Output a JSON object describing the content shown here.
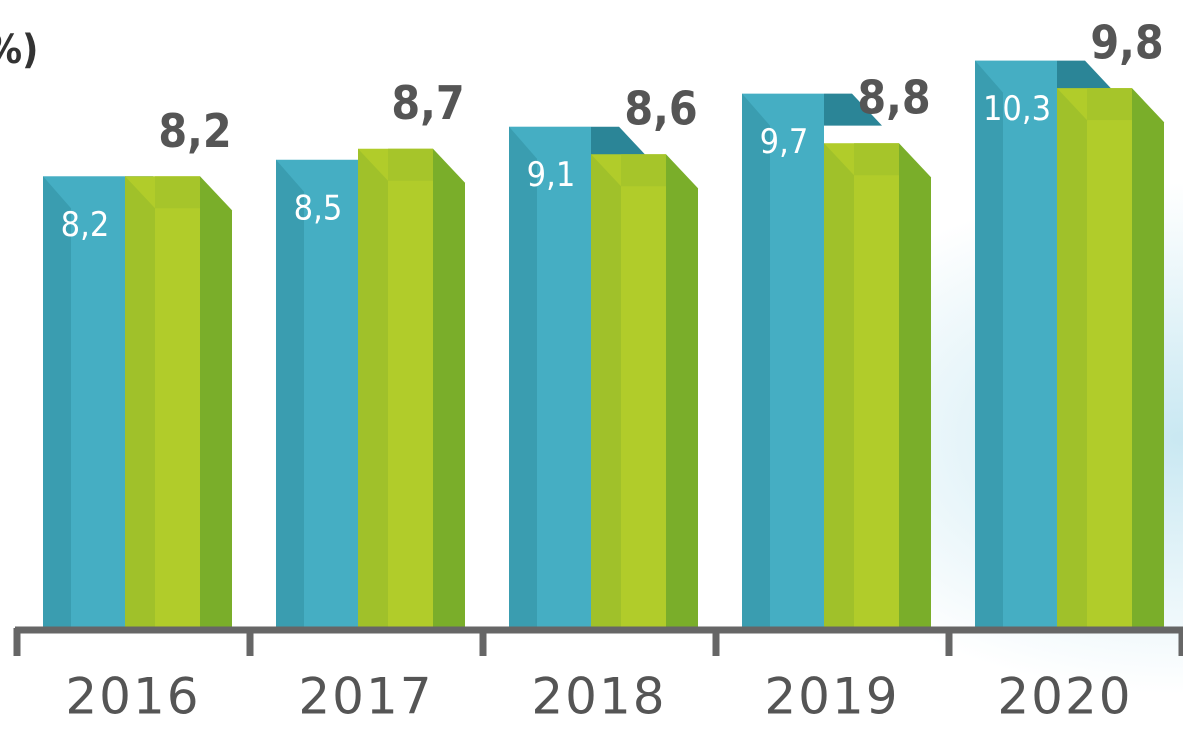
{
  "chart_data": {
    "type": "bar3d",
    "title": "%)",
    "categories": [
      "2016",
      "2017",
      "2018",
      "2019",
      "2020"
    ],
    "series": [
      {
        "color": "#45aec3",
        "values": [
          8.2,
          8.5,
          9.1,
          9.7,
          10.3
        ],
        "value_labels": [
          "8,2",
          "8,5",
          "9,1",
          "9,7",
          "10,3"
        ]
      },
      {
        "color": "#b1cc2a",
        "values": [
          8.2,
          8.7,
          8.6,
          8.8,
          9.8
        ],
        "value_labels": [
          "8,2",
          "8,7",
          "8,6",
          "8,8",
          "9,8"
        ]
      }
    ],
    "ylim": [
      0,
      11.4
    ]
  }
}
